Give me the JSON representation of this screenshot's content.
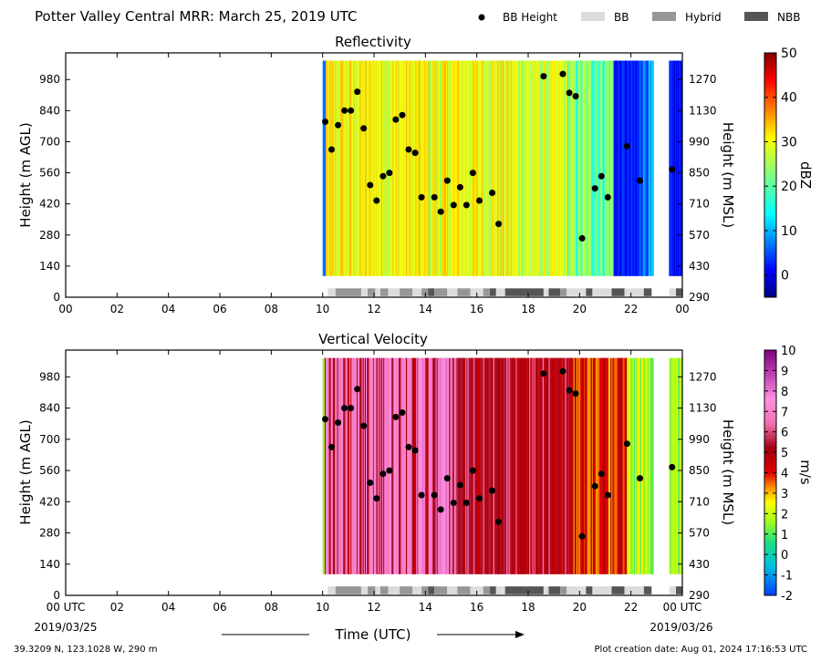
{
  "page": {
    "title": "Potter Valley Central MRR:  March 25, 2019 UTC",
    "location": "39.3209 N, 123.1028 W, 290 m",
    "creation": "Plot creation date: Aug 01, 2024 17:16:53 UTC",
    "time_label": "Time (UTC)",
    "date_left": "2019/03/25",
    "date_right": "2019/03/26"
  },
  "legend": {
    "items": [
      {
        "label": "BB Height",
        "marker": "dot",
        "color": "#000000"
      },
      {
        "label": "BB",
        "marker": "box",
        "color": "#dcdcdc"
      },
      {
        "label": "Hybrid",
        "marker": "box",
        "color": "#969696"
      },
      {
        "label": "NBB",
        "marker": "box",
        "color": "#555555"
      }
    ]
  },
  "colors": {
    "bb": "#dcdcdc",
    "hybrid": "#969696",
    "nbb": "#555555",
    "dot": "#000000"
  },
  "chart_data": [
    {
      "type": "heatmap",
      "title": "Reflectivity",
      "ylabel": "Height (m AGL)",
      "ylabel_right": "Height (m MSL)",
      "x_ticks": [
        "00",
        "02",
        "04",
        "06",
        "08",
        "10",
        "12",
        "14",
        "16",
        "18",
        "20",
        "22",
        "00"
      ],
      "xlim": [
        0,
        24
      ],
      "ylim": [
        0,
        1100
      ],
      "y_ticks": [
        0,
        140,
        280,
        420,
        560,
        700,
        840,
        980
      ],
      "y_ticks_right": [
        290,
        430,
        570,
        710,
        850,
        990,
        1130,
        1270
      ],
      "colorbar": {
        "label": "dBZ",
        "ticks": [
          0,
          10,
          20,
          30,
          40,
          50
        ],
        "range": [
          -5,
          50
        ],
        "colormap": "jet"
      },
      "field_start_hour": 10.0,
      "field_end_hour": 24.0
    },
    {
      "type": "heatmap",
      "title": "Vertical Velocity",
      "ylabel": "Height (m AGL)",
      "ylabel_right": "Height (m MSL)",
      "x_ticks": [
        "00 UTC",
        "02",
        "04",
        "06",
        "08",
        "10",
        "12",
        "14",
        "16",
        "18",
        "20",
        "22",
        "00 UTC"
      ],
      "xlim": [
        0,
        24
      ],
      "ylim": [
        0,
        1100
      ],
      "y_ticks": [
        0,
        140,
        280,
        420,
        560,
        700,
        840,
        980
      ],
      "y_ticks_right": [
        290,
        430,
        570,
        710,
        850,
        990,
        1130,
        1270
      ],
      "colorbar": {
        "label": "m/s",
        "ticks": [
          -2,
          -1,
          0,
          1,
          2,
          3,
          4,
          5,
          6,
          7,
          8,
          9,
          10
        ],
        "range": [
          -2,
          10
        ],
        "colormap": "velocity"
      },
      "field_start_hour": 10.0,
      "field_end_hour": 24.0
    }
  ],
  "bb_height_points": {
    "x": [
      10.1,
      10.35,
      10.6,
      10.85,
      11.1,
      11.35,
      11.6,
      11.85,
      12.1,
      12.35,
      12.6,
      12.85,
      13.1,
      13.35,
      13.6,
      13.85,
      14.35,
      14.6,
      14.85,
      15.1,
      15.35,
      15.6,
      15.85,
      16.1,
      16.6,
      16.85,
      18.6,
      19.35,
      19.6,
      19.85,
      20.1,
      20.6,
      20.85,
      21.1,
      21.85,
      22.35,
      23.6
    ],
    "y": [
      790,
      665,
      775,
      840,
      840,
      925,
      760,
      505,
      435,
      545,
      560,
      800,
      820,
      665,
      650,
      450,
      450,
      385,
      525,
      415,
      495,
      415,
      560,
      435,
      470,
      330,
      995,
      1005,
      920,
      905,
      265,
      490,
      545,
      450,
      680,
      525,
      575
    ]
  },
  "bb_class_segments": [
    {
      "start": 10.2,
      "end": 10.5,
      "class": "BB"
    },
    {
      "start": 10.5,
      "end": 11.5,
      "class": "Hybrid"
    },
    {
      "start": 11.5,
      "end": 11.75,
      "class": "BB"
    },
    {
      "start": 11.75,
      "end": 12.05,
      "class": "Hybrid"
    },
    {
      "start": 12.05,
      "end": 12.25,
      "class": "BB"
    },
    {
      "start": 12.25,
      "end": 12.55,
      "class": "Hybrid"
    },
    {
      "start": 12.55,
      "end": 13.0,
      "class": "BB"
    },
    {
      "start": 13.0,
      "end": 13.5,
      "class": "Hybrid"
    },
    {
      "start": 13.5,
      "end": 13.85,
      "class": "BB"
    },
    {
      "start": 13.85,
      "end": 14.1,
      "class": "Hybrid"
    },
    {
      "start": 14.1,
      "end": 14.35,
      "class": "NBB"
    },
    {
      "start": 14.35,
      "end": 14.85,
      "class": "Hybrid"
    },
    {
      "start": 14.85,
      "end": 15.25,
      "class": "BB"
    },
    {
      "start": 15.25,
      "end": 15.75,
      "class": "Hybrid"
    },
    {
      "start": 15.75,
      "end": 16.25,
      "class": "BB"
    },
    {
      "start": 16.25,
      "end": 16.5,
      "class": "Hybrid"
    },
    {
      "start": 16.5,
      "end": 16.75,
      "class": "NBB"
    },
    {
      "start": 16.75,
      "end": 17.0,
      "class": "BB"
    },
    {
      "start": 17.0,
      "end": 17.0,
      "class": "BB"
    },
    {
      "start": 17.0,
      "end": 17.1,
      "class": "BB"
    },
    {
      "start": 17.1,
      "end": 18.6,
      "class": "NBB"
    },
    {
      "start": 18.6,
      "end": 18.8,
      "class": "BB"
    },
    {
      "start": 18.8,
      "end": 19.25,
      "class": "NBB"
    },
    {
      "start": 19.25,
      "end": 19.5,
      "class": "Hybrid"
    },
    {
      "start": 19.5,
      "end": 20.25,
      "class": "BB"
    },
    {
      "start": 20.25,
      "end": 20.5,
      "class": "NBB"
    },
    {
      "start": 20.5,
      "end": 21.25,
      "class": "BB"
    },
    {
      "start": 21.25,
      "end": 21.75,
      "class": "NBB"
    },
    {
      "start": 21.75,
      "end": 22.5,
      "class": "BB"
    },
    {
      "start": 22.5,
      "end": 22.8,
      "class": "NBB"
    },
    {
      "start": 23.5,
      "end": 23.75,
      "class": "BB"
    },
    {
      "start": 23.75,
      "end": 24.0,
      "class": "NBB"
    }
  ],
  "gaps": [
    {
      "start": 22.85,
      "end": 23.25
    },
    {
      "start": 23.25,
      "end": 23.45
    }
  ]
}
